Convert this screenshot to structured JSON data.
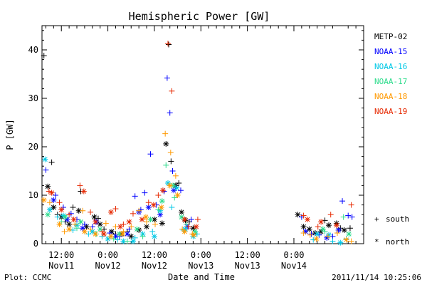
{
  "chart_data": {
    "type": "scatter",
    "title": "Hemispheric Power [GW]",
    "xlabel": "Date and Time",
    "ylabel": "P [GW]",
    "x_unit": "hours since 2011-11-11 00:00 UTC",
    "xlim": [
      7,
      90
    ],
    "ylim": [
      0,
      45
    ],
    "y_ticks": [
      0,
      10,
      20,
      30,
      40
    ],
    "x_ticks": [
      {
        "x": 12,
        "top": "12:00",
        "bottom": "Nov11"
      },
      {
        "x": 24,
        "top": "0:00",
        "bottom": "Nov12"
      },
      {
        "x": 36,
        "top": "12:00",
        "bottom": "Nov12"
      },
      {
        "x": 48,
        "top": "0:00",
        "bottom": "Nov13"
      },
      {
        "x": 60,
        "top": "12:00",
        "bottom": "Nov13"
      },
      {
        "x": 72,
        "top": "0:00",
        "bottom": "Nov14"
      }
    ],
    "grid": false,
    "legend_placement": "right",
    "hemisphere_key": [
      {
        "symbol": "+",
        "label": "south"
      },
      {
        "symbol": "*",
        "label": "north"
      }
    ],
    "series": [
      {
        "name": "METP-02",
        "color": "#000000",
        "plus": [
          [
            7.5,
            38.8
          ],
          [
            9.5,
            16.8
          ],
          [
            11,
            6.0
          ],
          [
            13,
            4.5
          ],
          [
            15,
            7.5
          ],
          [
            17,
            10.8
          ],
          [
            21.5,
            5.2
          ],
          [
            23,
            3.0
          ],
          [
            26,
            2.0
          ],
          [
            29,
            2.5
          ],
          [
            39.7,
            41.1
          ],
          [
            40.3,
            17.0
          ],
          [
            42.3,
            12.5
          ],
          [
            45,
            4.5
          ],
          [
            80,
            4.8
          ],
          [
            84,
            3.2
          ],
          [
            86.5,
            3.2
          ]
        ],
        "north": [
          [
            8.5,
            11.8
          ],
          [
            10,
            7.5
          ],
          [
            12,
            5.5
          ],
          [
            14,
            4.0
          ],
          [
            16.5,
            6.8
          ],
          [
            18.5,
            3.5
          ],
          [
            20.5,
            5.5
          ],
          [
            22,
            4.0
          ],
          [
            25,
            2.5
          ],
          [
            27.5,
            2.0
          ],
          [
            30,
            1.5
          ],
          [
            32,
            2.8
          ],
          [
            34,
            3.5
          ],
          [
            36,
            5.0
          ],
          [
            38,
            4.2
          ],
          [
            39,
            20.6
          ],
          [
            41.5,
            12.0
          ],
          [
            43,
            6.5
          ],
          [
            44,
            4.8
          ],
          [
            46,
            3.2
          ],
          [
            73,
            6.0
          ],
          [
            74.5,
            3.5
          ],
          [
            76,
            3.0
          ],
          [
            77.5,
            2.2
          ],
          [
            79,
            2.5
          ],
          [
            81,
            3.8
          ],
          [
            83,
            4.2
          ],
          [
            85,
            2.8
          ]
        ]
      },
      {
        "name": "NOAA-15",
        "color": "#0000ff",
        "plus": [
          [
            8,
            15.2
          ],
          [
            10.5,
            10.0
          ],
          [
            12.5,
            7.5
          ],
          [
            14.5,
            6.2
          ],
          [
            16,
            5.0
          ],
          [
            18,
            4.0
          ],
          [
            20,
            3.5
          ],
          [
            24.5,
            2.2
          ],
          [
            27,
            1.5
          ],
          [
            29.5,
            3.0
          ],
          [
            31,
            9.8
          ],
          [
            32.5,
            7.0
          ],
          [
            33.5,
            10.5
          ],
          [
            35,
            18.5
          ],
          [
            36.5,
            8.0
          ],
          [
            38.5,
            10.8
          ],
          [
            39.3,
            34.2
          ],
          [
            40,
            27.0
          ],
          [
            40.7,
            15.0
          ],
          [
            42.8,
            11.0
          ],
          [
            45.5,
            5.0
          ],
          [
            74,
            5.5
          ],
          [
            76.5,
            2.0
          ],
          [
            78.5,
            1.8
          ],
          [
            82,
            1.5
          ],
          [
            84.5,
            8.8
          ],
          [
            86,
            5.8
          ],
          [
            87,
            5.5
          ]
        ],
        "north": [
          [
            10,
            9.0
          ],
          [
            13.5,
            5.0
          ],
          [
            17.5,
            3.2
          ],
          [
            21,
            4.5
          ],
          [
            26,
            1.5
          ],
          [
            29,
            2.0
          ],
          [
            32,
            6.5
          ],
          [
            34.5,
            7.5
          ],
          [
            37.5,
            6.0
          ],
          [
            41,
            11.0
          ],
          [
            44.5,
            3.5
          ],
          [
            75,
            2.5
          ],
          [
            80.5,
            1.2
          ],
          [
            83.5,
            2.8
          ]
        ]
      },
      {
        "name": "NOAA-16",
        "color": "#00c8e6",
        "plus": [
          [
            11,
            5.5
          ],
          [
            15,
            2.8
          ],
          [
            19,
            2.0
          ],
          [
            22.5,
            1.5
          ],
          [
            26.5,
            0.8
          ],
          [
            31,
            1.2
          ],
          [
            35.5,
            2.5
          ],
          [
            40.5,
            7.5
          ],
          [
            43.5,
            2.8
          ],
          [
            47,
            2.0
          ],
          [
            77,
            0.8
          ],
          [
            82,
            0.5
          ],
          [
            85.5,
            1.0
          ]
        ],
        "north": [
          [
            7.8,
            17.4
          ],
          [
            9,
            7.0
          ],
          [
            12.5,
            5.8
          ],
          [
            16,
            3.8
          ],
          [
            20,
            2.5
          ],
          [
            24,
            1.0
          ],
          [
            28,
            0.5
          ],
          [
            30.5,
            0.5
          ],
          [
            33,
            2.0
          ],
          [
            36,
            1.5
          ],
          [
            37.5,
            6.8
          ],
          [
            39.5,
            12.5
          ],
          [
            41.8,
            11.5
          ],
          [
            44,
            3.0
          ],
          [
            46,
            1.5
          ],
          [
            78,
            2.0
          ],
          [
            81,
            1.8
          ],
          [
            84,
            0.2
          ]
        ]
      },
      {
        "name": "NOAA-17",
        "color": "#2ddc8c",
        "plus": [
          [
            12,
            4.5
          ],
          [
            16,
            3.2
          ],
          [
            21,
            2.0
          ],
          [
            25.5,
            1.0
          ],
          [
            29,
            0.5
          ],
          [
            33,
            1.5
          ],
          [
            37,
            7.0
          ],
          [
            39,
            16.2
          ],
          [
            41.2,
            9.5
          ],
          [
            44.3,
            4.0
          ],
          [
            80,
            2.5
          ],
          [
            84.8,
            5.5
          ]
        ],
        "north": [
          [
            8.5,
            6.0
          ],
          [
            13,
            5.5
          ],
          [
            17,
            4.5
          ],
          [
            22,
            3.0
          ],
          [
            27,
            2.0
          ],
          [
            31.5,
            3.0
          ],
          [
            35,
            5.0
          ],
          [
            38,
            8.8
          ],
          [
            40.8,
            12.0
          ],
          [
            43,
            5.5
          ],
          [
            46.5,
            2.5
          ],
          [
            79.5,
            3.0
          ],
          [
            86.2,
            2.0
          ]
        ]
      },
      {
        "name": "NOAA-18",
        "color": "#ff9900",
        "plus": [
          [
            9,
            8.5
          ],
          [
            12.8,
            2.5
          ],
          [
            15.5,
            4.0
          ],
          [
            17.5,
            6.8
          ],
          [
            19.5,
            3.0
          ],
          [
            23.5,
            4.2
          ],
          [
            26,
            3.5
          ],
          [
            28,
            2.5
          ],
          [
            30,
            3.5
          ],
          [
            32,
            6.8
          ],
          [
            34,
            4.5
          ],
          [
            36.2,
            4.0
          ],
          [
            38.8,
            22.7
          ],
          [
            40.2,
            18.8
          ],
          [
            41.5,
            14.0
          ],
          [
            43.2,
            3.0
          ],
          [
            45.8,
            2.0
          ],
          [
            74.5,
            2.2
          ],
          [
            76.2,
            1.8
          ],
          [
            80.8,
            1.5
          ],
          [
            83.2,
            2.2
          ],
          [
            86.8,
            0.5
          ]
        ],
        "north": [
          [
            7.5,
            9.0
          ],
          [
            11.5,
            4.0
          ],
          [
            14,
            3.0
          ],
          [
            18,
            2.5
          ],
          [
            20.8,
            2.0
          ],
          [
            24.8,
            1.5
          ],
          [
            27.8,
            2.0
          ],
          [
            33.8,
            5.5
          ],
          [
            37.8,
            7.5
          ],
          [
            40,
            12.0
          ],
          [
            42,
            10.0
          ],
          [
            43.8,
            2.5
          ],
          [
            46.2,
            1.8
          ],
          [
            77.8,
            1.0
          ],
          [
            85.5,
            0.8
          ]
        ]
      },
      {
        "name": "NOAA-19",
        "color": "#e62800",
        "plus": [
          [
            8.8,
            10.8
          ],
          [
            11.5,
            8.5
          ],
          [
            14,
            6.0
          ],
          [
            16.8,
            12.0
          ],
          [
            19.5,
            6.5
          ],
          [
            22.5,
            2.5
          ],
          [
            26,
            7.2
          ],
          [
            28,
            4.0
          ],
          [
            30.5,
            6.2
          ],
          [
            34.5,
            8.5
          ],
          [
            37,
            10.0
          ],
          [
            39.5,
            41.3
          ],
          [
            40.5,
            31.5
          ],
          [
            44.8,
            3.5
          ],
          [
            47.2,
            5.0
          ],
          [
            74.5,
            5.8
          ],
          [
            78.2,
            3.5
          ],
          [
            81.5,
            6.0
          ],
          [
            86.8,
            8.0
          ]
        ],
        "north": [
          [
            9.5,
            10.5
          ],
          [
            12,
            7.0
          ],
          [
            15.2,
            5.0
          ],
          [
            17.8,
            10.8
          ],
          [
            20.8,
            4.5
          ],
          [
            23,
            2.0
          ],
          [
            24.8,
            6.5
          ],
          [
            27.2,
            3.5
          ],
          [
            29.5,
            4.5
          ],
          [
            32.8,
            5.0
          ],
          [
            35.8,
            8.0
          ],
          [
            38.2,
            11.0
          ],
          [
            43.8,
            5.0
          ],
          [
            46.8,
            3.5
          ],
          [
            75.5,
            5.0
          ],
          [
            79,
            4.5
          ],
          [
            83,
            3.8
          ]
        ]
      }
    ]
  },
  "footer": {
    "plot_credit": "Plot: CCMC",
    "timestamp": "2011/11/14 10:25:06"
  },
  "legend": {
    "south_symbol": "+",
    "south_label": "south",
    "north_symbol": "*",
    "north_label": "north"
  }
}
